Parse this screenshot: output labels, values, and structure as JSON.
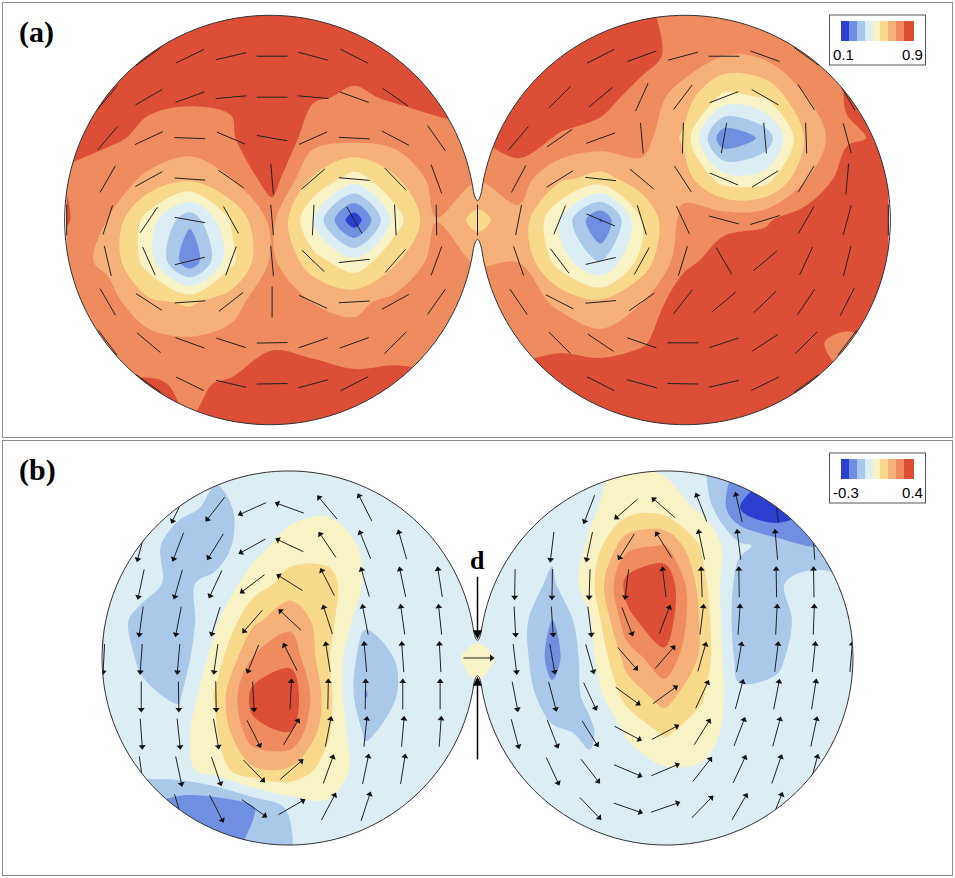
{
  "chart_data": [
    {
      "type": "contour",
      "title": "(a)",
      "tick_labels": false,
      "marker": "line",
      "xlim": [
        -2.31,
        2.31
      ],
      "ylim": [
        -1.06,
        1.06
      ],
      "colorbar": {
        "range": [
          0.1,
          0.9
        ],
        "ticks": [
          0.1,
          0.9
        ]
      },
      "colors": [
        "#2b3fd1",
        "#6f8fe0",
        "#aac8ea",
        "#dcedf4",
        "#f7f3c4",
        "#f9d98c",
        "#f6b07a",
        "#ef8c5f",
        "#dc4e36"
      ],
      "x": [
        -2.0,
        -1.8,
        -1.6,
        -1.4,
        -1.2,
        -1.0,
        -0.8,
        -0.6,
        -0.4,
        -0.2,
        0.0,
        0.2,
        0.4,
        0.6,
        0.8,
        1.0,
        1.2,
        1.4,
        1.6,
        1.8,
        2.0
      ],
      "y": [
        -1.0,
        -0.8,
        -0.6,
        -0.4,
        -0.2,
        0.0,
        0.2,
        0.4,
        0.6,
        0.8,
        1.0
      ],
      "z": [
        [
          null,
          null,
          null,
          null,
          null,
          null,
          null,
          null,
          null,
          null,
          null,
          null,
          null,
          null,
          null,
          null,
          null,
          null,
          null,
          null,
          null
        ],
        [
          null,
          null,
          0.82,
          0.8,
          0.82,
          0.86,
          0.86,
          0.84,
          null,
          null,
          null,
          null,
          null,
          0.9,
          0.9,
          0.9,
          0.88,
          0.84,
          0.82,
          null,
          null
        ],
        [
          null,
          0.8,
          0.76,
          0.74,
          0.76,
          0.8,
          0.78,
          0.76,
          0.8,
          null,
          null,
          null,
          0.8,
          0.76,
          0.8,
          0.88,
          0.88,
          0.84,
          0.82,
          0.8,
          null
        ],
        [
          null,
          0.76,
          0.65,
          0.62,
          0.68,
          0.8,
          0.72,
          0.7,
          0.75,
          0.8,
          null,
          0.78,
          0.7,
          0.65,
          0.72,
          0.88,
          0.9,
          0.88,
          0.86,
          0.84,
          null
        ],
        [
          null,
          0.7,
          0.5,
          0.2,
          0.52,
          0.74,
          0.58,
          0.48,
          0.62,
          0.76,
          null,
          0.72,
          0.5,
          0.35,
          0.58,
          0.78,
          0.86,
          0.86,
          0.88,
          0.88,
          null
        ],
        [
          0.82,
          0.72,
          0.5,
          0.3,
          0.55,
          0.75,
          0.45,
          0.12,
          0.5,
          0.72,
          0.6,
          0.7,
          0.45,
          0.18,
          0.55,
          0.75,
          0.78,
          0.8,
          0.86,
          0.88,
          0.88
        ],
        [
          null,
          0.78,
          0.7,
          0.65,
          0.72,
          0.86,
          0.62,
          0.5,
          0.62,
          0.76,
          null,
          0.76,
          0.65,
          0.6,
          0.68,
          0.68,
          0.5,
          0.5,
          0.72,
          0.86,
          null
        ],
        [
          null,
          0.82,
          0.8,
          0.78,
          0.8,
          0.9,
          0.76,
          0.75,
          0.76,
          0.8,
          null,
          0.86,
          0.8,
          0.78,
          0.76,
          0.62,
          0.2,
          0.3,
          0.65,
          0.8,
          null
        ],
        [
          null,
          0.84,
          0.82,
          0.82,
          0.82,
          0.9,
          0.82,
          0.8,
          0.82,
          null,
          null,
          null,
          0.88,
          0.84,
          0.78,
          0.68,
          0.52,
          0.55,
          0.72,
          0.82,
          null
        ],
        [
          null,
          null,
          0.84,
          0.84,
          0.86,
          0.9,
          0.86,
          0.84,
          null,
          null,
          null,
          null,
          null,
          0.86,
          0.84,
          0.78,
          0.72,
          0.74,
          0.8,
          null,
          null
        ],
        [
          null,
          null,
          null,
          null,
          null,
          null,
          null,
          null,
          null,
          null,
          null,
          null,
          null,
          null,
          null,
          null,
          null,
          null,
          null,
          null,
          null
        ]
      ],
      "vectors": {
        "angle": [
          [
            null,
            null,
            null,
            null,
            null,
            null,
            null,
            null,
            null,
            null,
            null,
            null,
            null,
            null,
            null,
            null,
            null,
            null,
            null,
            null,
            null
          ],
          [
            null,
            null,
            144,
            154,
            167,
            1,
            15,
            27,
            null,
            null,
            null,
            null,
            null,
            153,
            165,
            179,
            13,
            26,
            36,
            null,
            null
          ],
          [
            null,
            127,
            140,
            160,
            162,
            1,
            19,
            20,
            45,
            null,
            null,
            null,
            135,
            146,
            161,
            0,
            18,
            33,
            45,
            53,
            null
          ],
          [
            null,
            120,
            147,
            4,
            38,
            90,
            155,
            3,
            29,
            55,
            null,
            124,
            153,
            5,
            35,
            52,
            40,
            44,
            56,
            63,
            null
          ],
          [
            null,
            103,
            114,
            14,
            70,
            95,
            136,
            6,
            49,
            70,
            null,
            109,
            127,
            13,
            61,
            73,
            120,
            40,
            65,
            76,
            null
          ],
          [
            90,
            72,
            56,
            170,
            119,
            95,
            87,
            120,
            93,
            91,
            90,
            79,
            68,
            157,
            107,
            115,
            165,
            17,
            60,
            75,
            90
          ],
          [
            null,
            60,
            29,
            176,
            145,
            95,
            41,
            175,
            134,
            110,
            null,
            62,
            32,
            174,
            140,
            123,
            157,
            32,
            59,
            85,
            null
          ],
          [
            null,
            50,
            25,
            178,
            157,
            170,
            24,
            177,
            152,
            125,
            null,
            50,
            35,
            20,
            95,
            88,
            80,
            95,
            92,
            105,
            null
          ],
          [
            null,
            50,
            30,
            20,
            5,
            0,
            175,
            160,
            145,
            null,
            null,
            null,
            45,
            40,
            66,
            53,
            21,
            150,
            123,
            120,
            null
          ],
          [
            null,
            null,
            36,
            26,
            13,
            0,
            165,
            153,
            null,
            null,
            null,
            null,
            null,
            27,
            20,
            15,
            0,
            160,
            144,
            null,
            null
          ],
          [
            null,
            null,
            null,
            null,
            null,
            null,
            null,
            null,
            null,
            null,
            null,
            null,
            null,
            null,
            null,
            null,
            null,
            null,
            null,
            null,
            null
          ]
        ]
      }
    },
    {
      "type": "contour",
      "title": "(b)",
      "tick_labels": false,
      "marker": "arrow",
      "xlim": [
        -2.54,
        2.54
      ],
      "ylim": [
        -1.16,
        1.16
      ],
      "colorbar": {
        "range": [
          -0.3,
          0.4
        ],
        "ticks": [
          -0.3,
          0.4
        ]
      },
      "colors": [
        "#2b3fd1",
        "#6f8fe0",
        "#aac8ea",
        "#dcedf4",
        "#f7f3c4",
        "#f9d98c",
        "#f6b07a",
        "#ef8c5f",
        "#dc4e36"
      ],
      "annotations": [
        "d"
      ],
      "x": [
        -2.0,
        -1.8,
        -1.6,
        -1.4,
        -1.2,
        -1.0,
        -0.8,
        -0.6,
        -0.4,
        -0.2,
        0.0,
        0.2,
        0.4,
        0.6,
        0.8,
        1.0,
        1.2,
        1.4,
        1.6,
        1.8,
        2.0
      ],
      "y": [
        -1.0,
        -0.8,
        -0.6,
        -0.4,
        -0.2,
        0.0,
        0.2,
        0.4,
        0.6,
        0.8,
        1.0
      ],
      "z": [
        [
          null,
          null,
          null,
          null,
          null,
          null,
          null,
          null,
          null,
          null,
          null,
          null,
          null,
          null,
          null,
          null,
          null,
          null,
          null,
          null,
          null
        ],
        [
          null,
          null,
          -0.2,
          -0.22,
          -0.15,
          -0.05,
          0,
          0,
          null,
          null,
          null,
          null,
          null,
          0,
          0,
          0,
          -0.02,
          -0.02,
          0,
          null,
          null
        ],
        [
          null,
          -0.05,
          -0.02,
          0.05,
          0.15,
          0.15,
          0.05,
          -0.02,
          0,
          null,
          null,
          null,
          -0.02,
          -0.05,
          -0.03,
          0,
          0,
          -0.02,
          -0.05,
          -0.05,
          null
        ],
        [
          null,
          -0.02,
          -0.02,
          0.08,
          0.3,
          0.32,
          0.1,
          -0.08,
          -0.03,
          0,
          null,
          0,
          -0.05,
          -0.08,
          0.02,
          0.1,
          0.05,
          -0.03,
          -0.05,
          -0.05,
          null
        ],
        [
          null,
          -0.05,
          -0.08,
          0.1,
          0.35,
          0.38,
          0.12,
          -0.15,
          -0.05,
          0,
          null,
          0,
          -0.12,
          -0.05,
          0.12,
          0.2,
          0.1,
          -0.05,
          -0.05,
          -0.05,
          null
        ],
        [
          0,
          -0.08,
          -0.12,
          0.05,
          0.25,
          0.3,
          0.1,
          -0.12,
          -0.05,
          0,
          0.02,
          0,
          -0.18,
          -0.02,
          0.2,
          0.3,
          0.15,
          -0.1,
          -0.08,
          -0.02,
          0
        ],
        [
          null,
          -0.08,
          -0.12,
          0,
          0.15,
          0.22,
          0.12,
          -0.05,
          -0.05,
          0,
          null,
          -0.02,
          -0.15,
          0,
          0.3,
          0.38,
          0.15,
          -0.12,
          -0.1,
          -0.02,
          null
        ],
        [
          null,
          -0.05,
          -0.08,
          -0.05,
          0.05,
          0.12,
          0.12,
          0,
          -0.02,
          0,
          null,
          -0.02,
          -0.08,
          0.05,
          0.35,
          0.4,
          0.12,
          -0.1,
          -0.08,
          -0.02,
          null
        ],
        [
          null,
          -0.03,
          -0.1,
          -0.1,
          -0.02,
          0.05,
          0.05,
          0,
          -0.02,
          null,
          null,
          null,
          -0.05,
          0.02,
          0.22,
          0.25,
          0.08,
          -0.05,
          -0.1,
          -0.15,
          null
        ],
        [
          null,
          null,
          -0.05,
          -0.08,
          -0.05,
          -0.02,
          0,
          0,
          null,
          null,
          null,
          null,
          null,
          0,
          0.05,
          0.05,
          0,
          -0.22,
          -0.3,
          null,
          null
        ],
        [
          null,
          null,
          null,
          null,
          null,
          null,
          null,
          null,
          null,
          null,
          null,
          null,
          null,
          null,
          null,
          null,
          null,
          null,
          null,
          null,
          null
        ]
      ],
      "vectors": {
        "angle": [
          [
            null,
            null,
            null,
            null,
            null,
            null,
            null,
            null,
            null,
            null,
            null,
            null,
            null,
            null,
            null,
            null,
            null,
            null,
            null,
            null,
            null
          ],
          [
            null,
            null,
            287,
            297,
            325,
            30,
            62,
            72,
            null,
            null,
            null,
            null,
            null,
            314,
            341,
            19,
            46,
            60,
            68,
            null,
            null
          ],
          [
            null,
            278,
            282,
            289,
            314,
            41,
            70,
            78,
            81,
            null,
            null,
            null,
            295,
            308,
            337,
            23,
            52,
            65,
            71,
            75,
            null
          ],
          [
            null,
            274,
            276,
            280,
            297,
            59,
            79,
            84,
            85,
            86,
            null,
            285,
            291,
            302,
            332,
            28,
            58,
            69,
            75,
            78,
            null
          ],
          [
            null,
            270,
            271,
            271,
            273,
            87,
            89,
            89,
            90,
            90,
            null,
            281,
            285,
            295,
            324,
            36,
            65,
            75,
            79,
            81,
            null
          ],
          [
            267,
            266,
            265,
            262,
            248,
            117,
            99,
            95,
            94,
            93,
            0,
            277,
            280,
            286,
            311,
            49,
            74,
            80,
            83,
            84,
            85
          ],
          [
            null,
            262,
            259,
            253,
            229,
            137,
            108,
            101,
            98,
            96,
            null,
            273,
            274,
            277,
            291,
            69,
            83,
            86,
            87,
            88,
            null
          ],
          [
            null,
            258,
            254,
            245,
            217,
            148,
            117,
            106,
            102,
            99,
            null,
            269,
            269,
            268,
            263,
            97,
            92,
            91,
            91,
            91,
            null
          ],
          [
            null,
            255,
            249,
            238,
            209,
            155,
            124,
            112,
            106,
            null,
            null,
            null,
            263,
            258,
            238,
            122,
            102,
            97,
            95,
            94,
            null
          ],
          [
            null,
            null,
            244,
            232,
            204,
            160,
            130,
            117,
            null,
            null,
            null,
            null,
            null,
            249,
            221,
            139,
            111,
            103,
            99,
            null,
            null
          ],
          [
            null,
            null,
            null,
            null,
            null,
            null,
            null,
            null,
            null,
            null,
            null,
            null,
            null,
            null,
            null,
            null,
            null,
            null,
            null,
            null,
            null
          ]
        ]
      }
    }
  ]
}
